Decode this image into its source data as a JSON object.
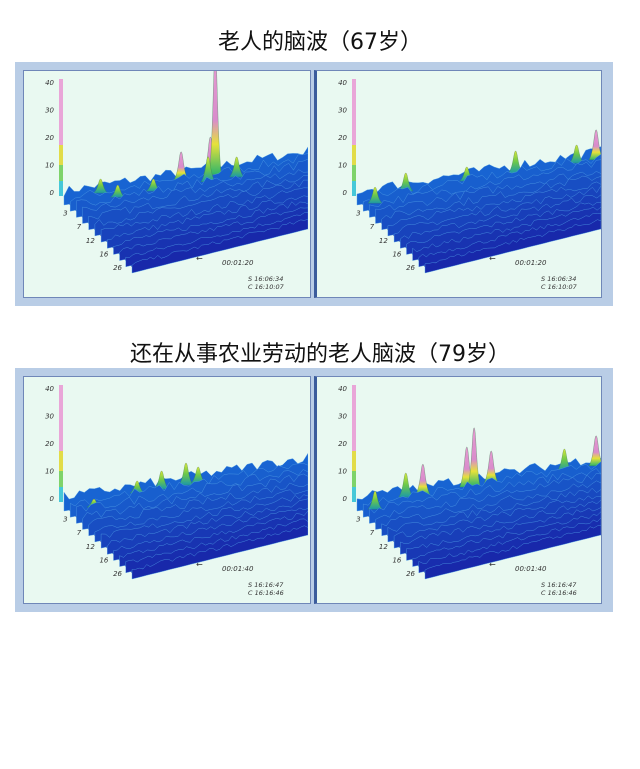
{
  "figures": [
    {
      "title": "老人的脑波（67岁）",
      "panels": [
        {
          "z_ticks": [
            "40",
            "30",
            "20",
            "10",
            "0"
          ],
          "depth_ticks": [
            "3",
            "7",
            "12",
            "16",
            "26"
          ],
          "time": "00:01:20",
          "start": "S 16:06:34",
          "current": "C 16:10:07"
        },
        {
          "z_ticks": [
            "40",
            "30",
            "20",
            "10",
            "0"
          ],
          "depth_ticks": [
            "3",
            "7",
            "12",
            "16",
            "26"
          ],
          "time": "00:01:20",
          "start": "S 16:06:34",
          "current": "C 16:10:07"
        }
      ]
    },
    {
      "title": "还在从事农业劳动的老人脑波（79岁）",
      "panels": [
        {
          "z_ticks": [
            "40",
            "30",
            "20",
            "10",
            "0"
          ],
          "depth_ticks": [
            "3",
            "7",
            "12",
            "16",
            "26"
          ],
          "time": "00:01:40",
          "start": "S 16:16:47",
          "current": "C 16:16:46"
        },
        {
          "z_ticks": [
            "40",
            "30",
            "20",
            "10",
            "0"
          ],
          "depth_ticks": [
            "3",
            "7",
            "12",
            "16",
            "26"
          ],
          "time": "00:01:40",
          "start": "S 16:16:47",
          "current": "C 16:16:46"
        }
      ]
    }
  ]
}
